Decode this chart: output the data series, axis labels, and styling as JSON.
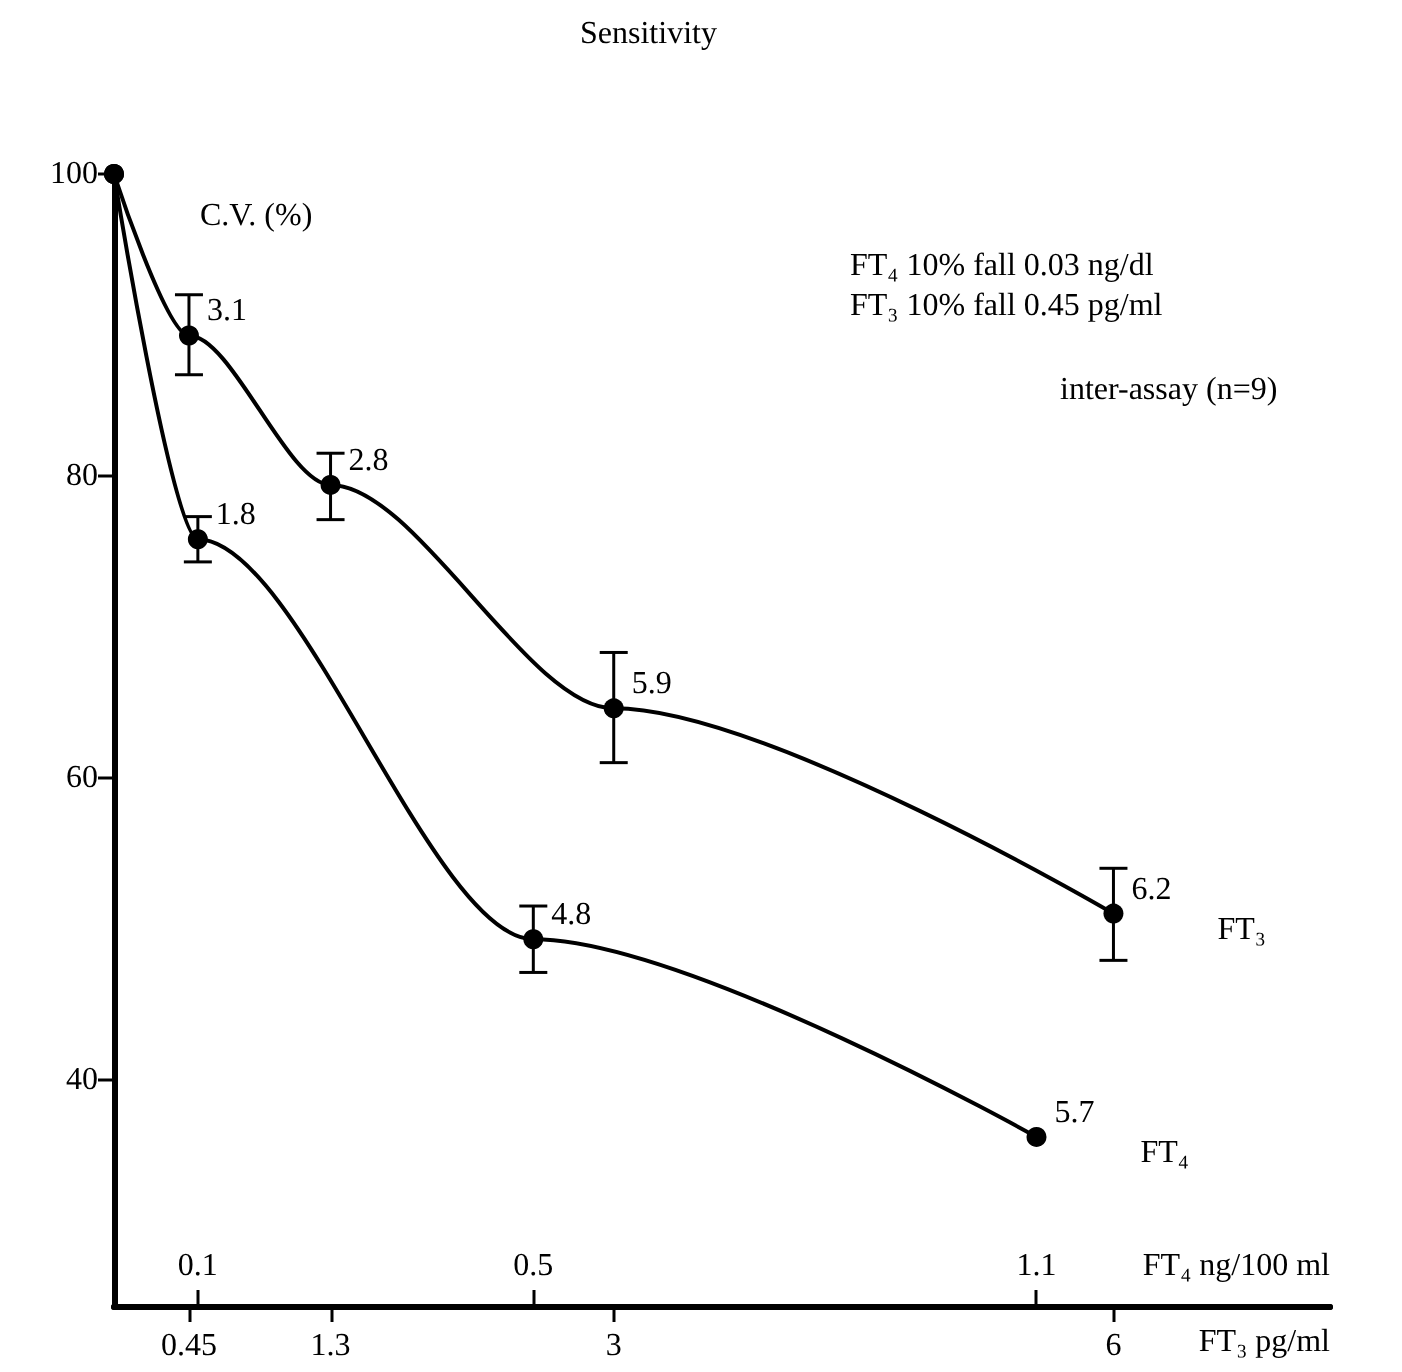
{
  "chart_data": {
    "type": "line",
    "title": "Sensitivity",
    "xlabel": "FT₄ ng/100 ml",
    "xlim": [
      0,
      1.45
    ],
    "xticks": [
      0.1,
      0.5,
      1.1
    ],
    "x2label": "FT₃ pg/ml",
    "x2lim": [
      0,
      7.3
    ],
    "x2ticks": [
      0.45,
      1.3,
      3,
      6
    ],
    "ylim": [
      25,
      100
    ],
    "yticks": [
      40,
      60,
      80,
      100
    ],
    "series": [
      {
        "name": "FT₃",
        "color": "#000000",
        "axis": "x2",
        "x": [
          0,
          0.45,
          1.3,
          3,
          6
        ],
        "values": [
          100,
          89.3,
          79.4,
          64.6,
          51.0
        ],
        "errors": [
          null,
          [
            86.7,
            92.0
          ],
          [
            77.1,
            81.5
          ],
          [
            61.0,
            68.3
          ],
          [
            47.9,
            54.0
          ]
        ]
      },
      {
        "name": "FT₄",
        "color": "#000000",
        "x": [
          0,
          0.1,
          0.5,
          1.1
        ],
        "values": [
          100,
          75.8,
          49.3,
          36.2
        ],
        "errors": [
          null,
          [
            74.3,
            77.3
          ],
          [
            47.1,
            51.5
          ],
          null
        ]
      }
    ],
    "annotations": [
      "C.V. (%)",
      "FT₄ 10% fall 0.03 ng/dl",
      "FT₃ 10% fall 0.45 pg/ml",
      "inter-assay (n=9)",
      "3.1",
      "2.8",
      "5.9",
      "6.2",
      "1.8",
      "4.8",
      "5.7"
    ],
    "marker": "circle",
    "line_style": "solid",
    "grid": false,
    "legend": false
  }
}
